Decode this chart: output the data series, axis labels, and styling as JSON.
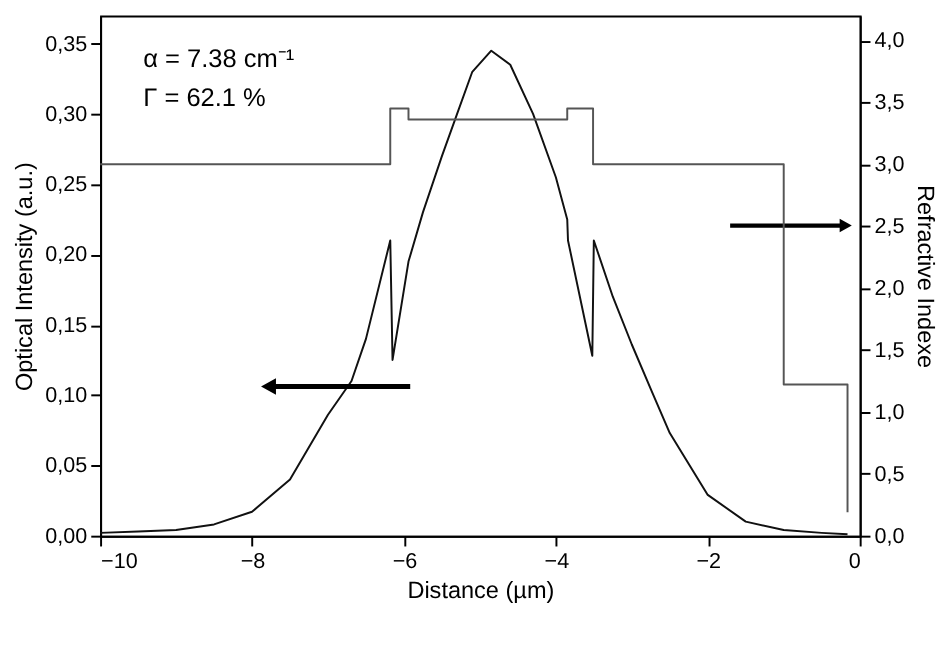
{
  "chart_data": {
    "type": "line",
    "xlabel": "Distance (µm)",
    "ylabel": "Optical Intensity (a.u.)",
    "y2label": "Refractive Indexe",
    "annotations": [
      "α = 7.38 cm⁻¹",
      "Γ = 62.1 %"
    ],
    "xlim": [
      -10,
      0
    ],
    "xticks": [
      -10,
      -8,
      -6,
      -4,
      -2,
      0
    ],
    "ylim": [
      0,
      0.37
    ],
    "yticks": [
      {
        "value": 0,
        "label": "0,00"
      },
      {
        "value": 0.05,
        "label": "0,05"
      },
      {
        "value": 0.1,
        "label": "0,10"
      },
      {
        "value": 0.15,
        "label": "0,15"
      },
      {
        "value": 0.2,
        "label": "0,20"
      },
      {
        "value": 0.25,
        "label": "0,25"
      },
      {
        "value": 0.3,
        "label": "0,30"
      },
      {
        "value": 0.35,
        "label": "0,35"
      }
    ],
    "y2lim": [
      0,
      4.2
    ],
    "y2ticks": [
      {
        "value": 0,
        "label": "0,0"
      },
      {
        "value": 0.5,
        "label": "0,5"
      },
      {
        "value": 1,
        "label": "1,0"
      },
      {
        "value": 1.5,
        "label": "1,5"
      },
      {
        "value": 2,
        "label": "2,0"
      },
      {
        "value": 2.5,
        "label": "2,5"
      },
      {
        "value": 3,
        "label": "3,0"
      },
      {
        "value": 3.5,
        "label": "3,5"
      },
      {
        "value": 4,
        "label": "4,0"
      }
    ],
    "grid": false,
    "series": [
      {
        "type": "line",
        "color": "#111111",
        "x": [
          -10,
          -9.5,
          -9,
          -8.5,
          -8,
          -7.5,
          -7,
          -6.69,
          -6.5,
          -6.18,
          -6.15,
          -5.94,
          -5.75,
          -5.5,
          -5.3,
          -5.1,
          -4.85,
          -4.6,
          -4.3,
          -4.0,
          -3.85,
          -3.84,
          -3.52,
          -3.5,
          -3.25,
          -3.0,
          -2.74,
          -2.5,
          -2.0,
          -1.5,
          -1.0,
          -0.5,
          -0.16
        ],
        "values": [
          0.002,
          0.003,
          0.004,
          0.008,
          0.017,
          0.04,
          0.086,
          0.11,
          0.14,
          0.21,
          0.125,
          0.195,
          0.23,
          0.27,
          0.3,
          0.33,
          0.345,
          0.335,
          0.3,
          0.255,
          0.225,
          0.21,
          0.128,
          0.21,
          0.17,
          0.136,
          0.103,
          0.073,
          0.029,
          0.01,
          0.004,
          0.002,
          0.001
        ]
      },
      {
        "type": "step",
        "axis": "y2",
        "color": "#555555",
        "x": [
          -10,
          -6.18,
          -5.94,
          -3.85,
          -3.51,
          -1.0,
          -0.16
        ],
        "values": [
          3.0,
          3.45,
          3.36,
          3.45,
          3.0,
          1.22,
          0.19
        ]
      }
    ]
  }
}
